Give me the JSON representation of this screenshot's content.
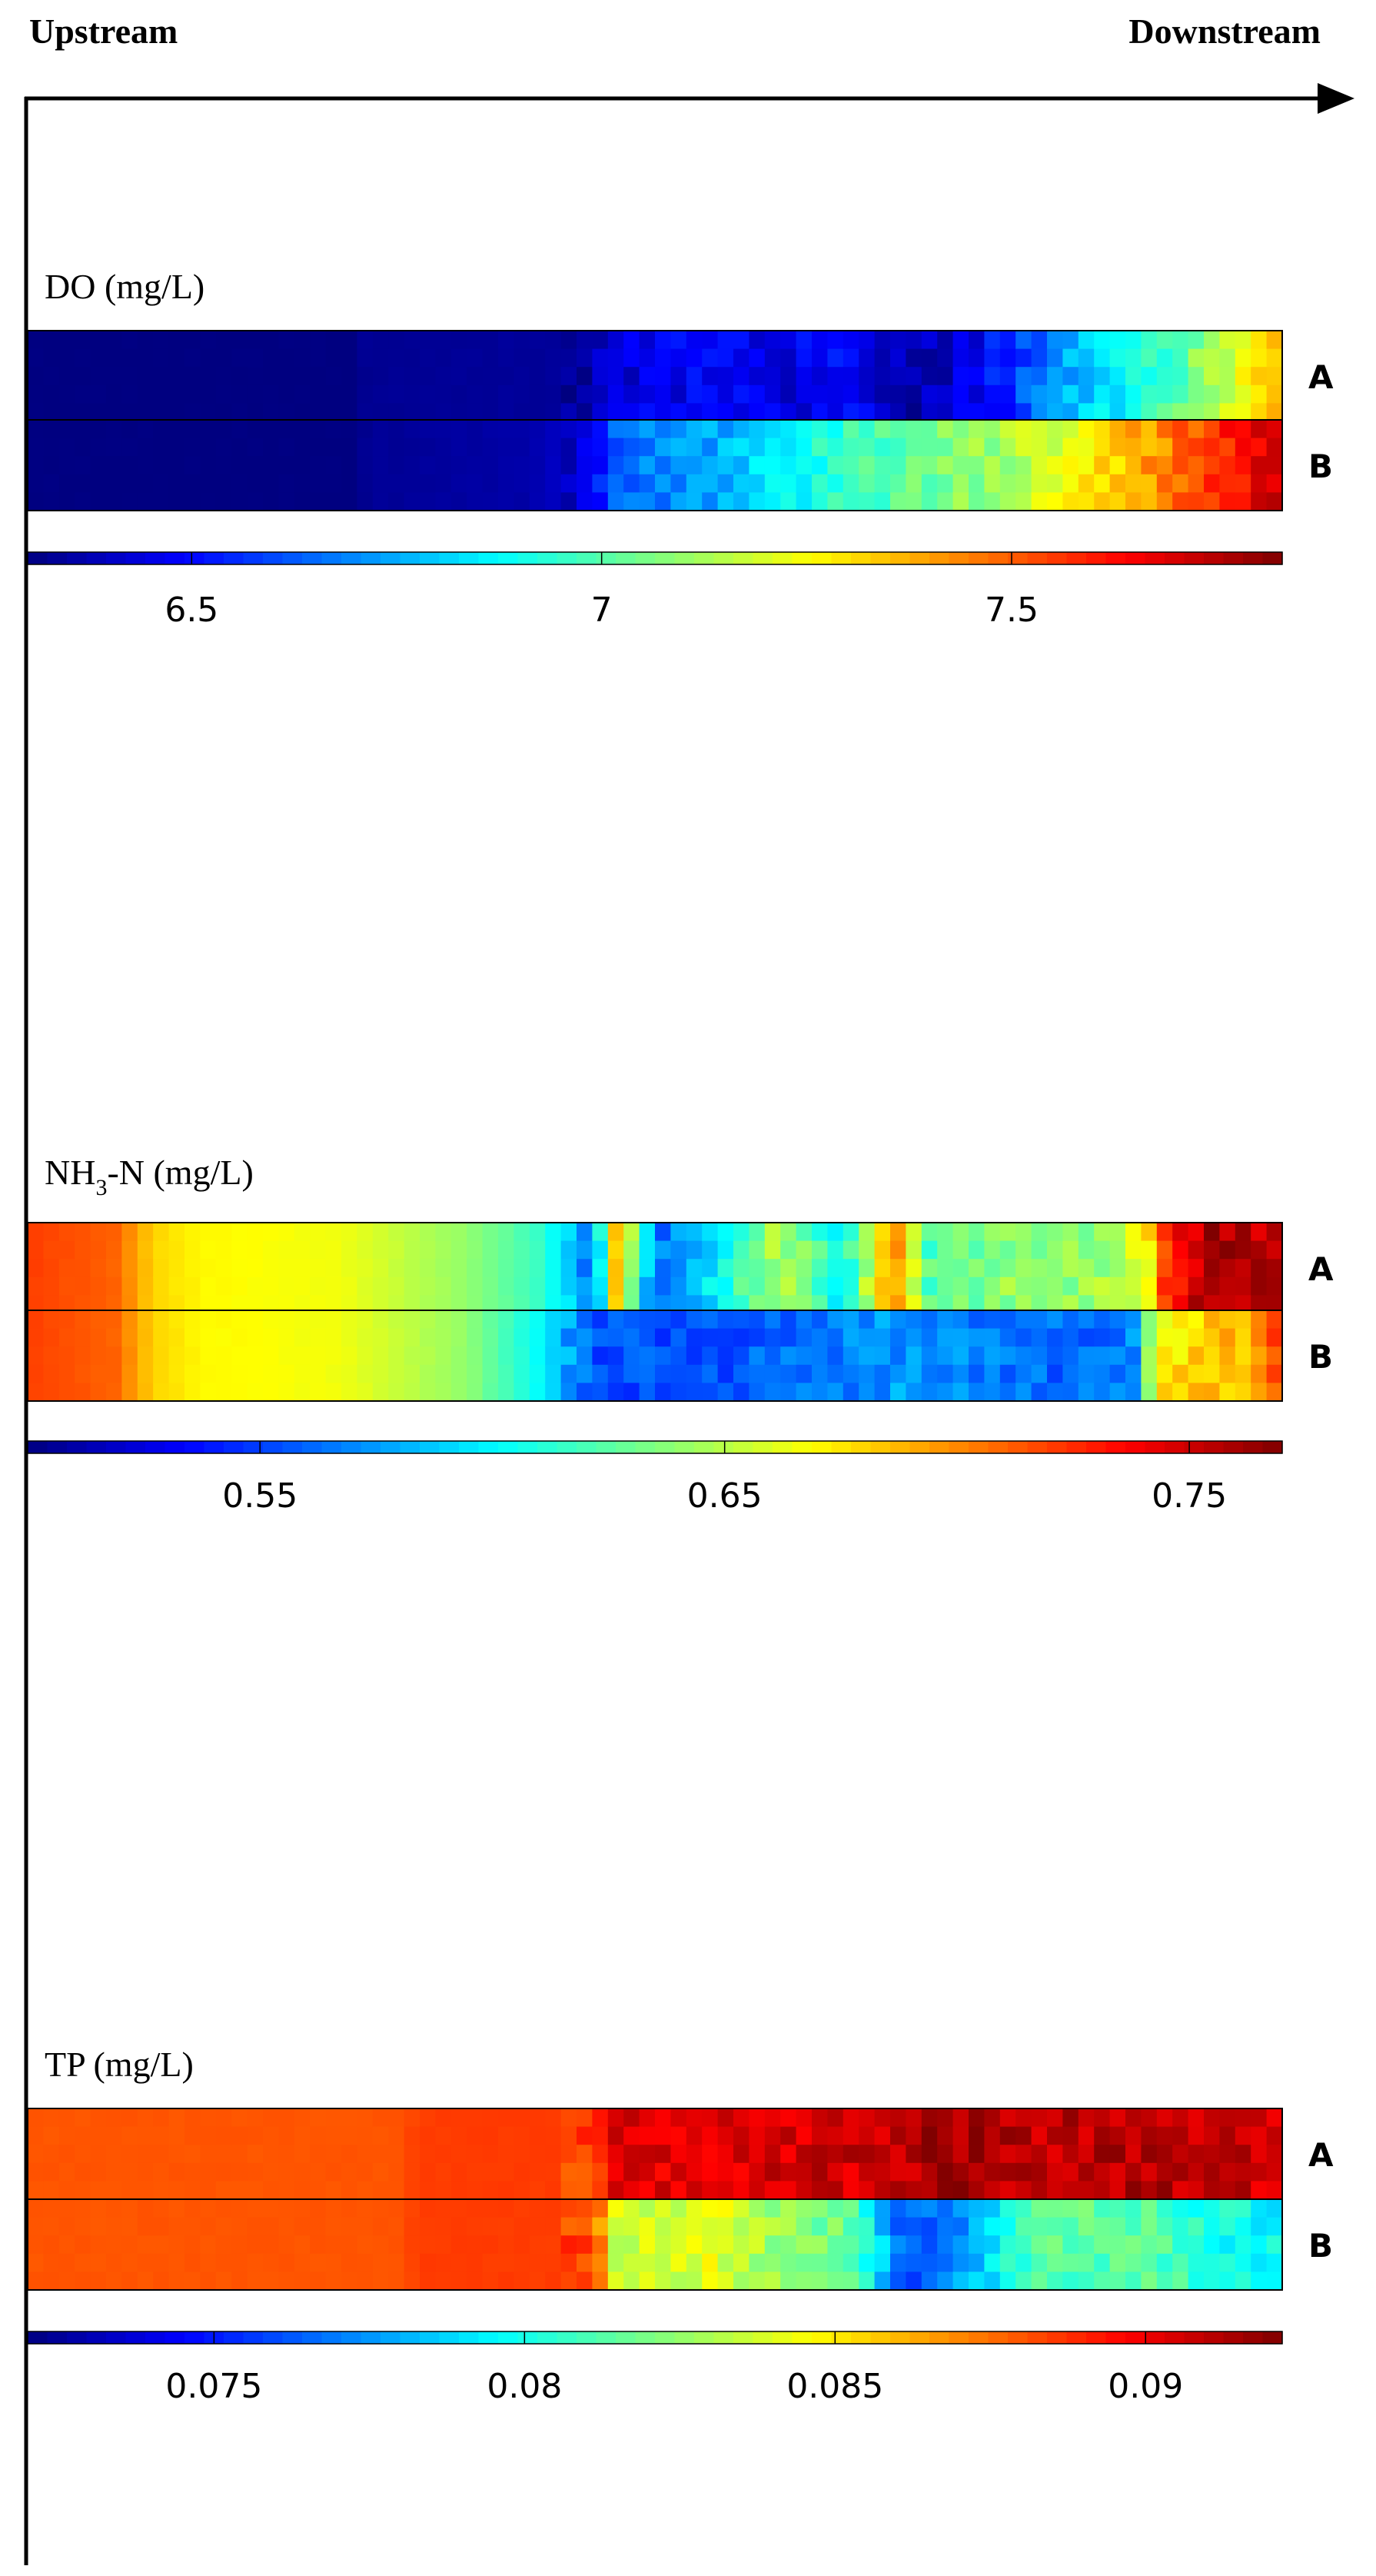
{
  "direction": {
    "start_label": "Upstream",
    "end_label": "Downstream"
  },
  "colormap": "jet",
  "colors": {
    "axis": "#000000",
    "band_border": "#000000",
    "background": "#ffffff"
  },
  "chart_data": [
    {
      "type": "heatmap",
      "title_main": "DO (mg/L)",
      "title_sub": "",
      "title_tail": "",
      "rows": [
        "A",
        "B"
      ],
      "subrows_per_band": 5,
      "clim": [
        6.3,
        7.83
      ],
      "colorbar_ticks": [
        {
          "value": 6.5,
          "label": "6.5"
        },
        {
          "value": 7.0,
          "label": "7"
        },
        {
          "value": 7.5,
          "label": "7.5"
        }
      ],
      "profiles": {
        "A": [
          [
            0,
            6.3
          ],
          [
            0.26,
            6.3
          ],
          [
            0.27,
            6.33
          ],
          [
            0.44,
            6.34
          ],
          [
            0.46,
            6.4
          ],
          [
            0.5,
            6.46
          ],
          [
            0.55,
            6.48
          ],
          [
            0.6,
            6.44
          ],
          [
            0.65,
            6.5
          ],
          [
            0.7,
            6.35
          ],
          [
            0.74,
            6.42
          ],
          [
            0.78,
            6.55
          ],
          [
            0.83,
            6.75
          ],
          [
            0.88,
            6.9
          ],
          [
            0.92,
            7.02
          ],
          [
            0.95,
            7.15
          ],
          [
            0.98,
            7.3
          ],
          [
            1.0,
            7.4
          ]
        ],
        "B": [
          [
            0,
            6.3
          ],
          [
            0.26,
            6.3
          ],
          [
            0.27,
            6.33
          ],
          [
            0.4,
            6.36
          ],
          [
            0.45,
            6.45
          ],
          [
            0.47,
            6.65
          ],
          [
            0.55,
            6.75
          ],
          [
            0.62,
            6.9
          ],
          [
            0.7,
            7.02
          ],
          [
            0.78,
            7.12
          ],
          [
            0.85,
            7.28
          ],
          [
            0.9,
            7.42
          ],
          [
            0.95,
            7.58
          ],
          [
            1.0,
            7.72
          ]
        ]
      }
    },
    {
      "type": "heatmap",
      "title_main": "NH",
      "title_sub": "3",
      "title_tail": "-N (mg/L)",
      "rows": [
        "A",
        "B"
      ],
      "subrows_per_band": 5,
      "clim": [
        0.5,
        0.77
      ],
      "colorbar_ticks": [
        {
          "value": 0.55,
          "label": "0.55"
        },
        {
          "value": 0.65,
          "label": "0.65"
        },
        {
          "value": 0.75,
          "label": "0.75"
        }
      ],
      "profiles": {
        "A": [
          [
            0,
            0.72
          ],
          [
            0.07,
            0.71
          ],
          [
            0.1,
            0.68
          ],
          [
            0.14,
            0.67
          ],
          [
            0.25,
            0.665
          ],
          [
            0.35,
            0.64
          ],
          [
            0.41,
            0.615
          ],
          [
            0.45,
            0.56
          ],
          [
            0.47,
            0.69
          ],
          [
            0.5,
            0.56
          ],
          [
            0.55,
            0.6
          ],
          [
            0.6,
            0.65
          ],
          [
            0.65,
            0.6
          ],
          [
            0.69,
            0.7
          ],
          [
            0.72,
            0.62
          ],
          [
            0.78,
            0.64
          ],
          [
            0.85,
            0.64
          ],
          [
            0.89,
            0.66
          ],
          [
            0.91,
            0.73
          ],
          [
            0.94,
            0.76
          ],
          [
            1.0,
            0.75
          ]
        ],
        "B": [
          [
            0,
            0.72
          ],
          [
            0.07,
            0.71
          ],
          [
            0.1,
            0.68
          ],
          [
            0.14,
            0.67
          ],
          [
            0.25,
            0.665
          ],
          [
            0.35,
            0.64
          ],
          [
            0.41,
            0.6
          ],
          [
            0.45,
            0.555
          ],
          [
            0.55,
            0.555
          ],
          [
            0.62,
            0.565
          ],
          [
            0.7,
            0.575
          ],
          [
            0.8,
            0.56
          ],
          [
            0.88,
            0.565
          ],
          [
            0.9,
            0.67
          ],
          [
            0.93,
            0.68
          ],
          [
            0.97,
            0.69
          ],
          [
            1.0,
            0.72
          ]
        ]
      }
    },
    {
      "type": "heatmap",
      "title_main": "TP (mg/L)",
      "title_sub": "",
      "title_tail": "",
      "rows": [
        "A",
        "B"
      ],
      "subrows_per_band": 5,
      "clim": [
        0.072,
        0.0922
      ],
      "colorbar_ticks": [
        {
          "value": 0.075,
          "label": "0.075"
        },
        {
          "value": 0.08,
          "label": "0.08"
        },
        {
          "value": 0.085,
          "label": "0.085"
        },
        {
          "value": 0.09,
          "label": "0.09"
        }
      ],
      "profiles": {
        "A": [
          [
            0,
            0.088
          ],
          [
            0.3,
            0.088
          ],
          [
            0.31,
            0.0885
          ],
          [
            0.45,
            0.0885
          ],
          [
            0.47,
            0.0902
          ],
          [
            0.6,
            0.0905
          ],
          [
            0.7,
            0.0908
          ],
          [
            0.72,
            0.0918
          ],
          [
            0.8,
            0.091
          ],
          [
            0.9,
            0.0912
          ],
          [
            1.0,
            0.0905
          ]
        ],
        "B": [
          [
            0,
            0.088
          ],
          [
            0.3,
            0.088
          ],
          [
            0.31,
            0.0885
          ],
          [
            0.45,
            0.0885
          ],
          [
            0.47,
            0.0835
          ],
          [
            0.55,
            0.084
          ],
          [
            0.6,
            0.0825
          ],
          [
            0.66,
            0.0815
          ],
          [
            0.7,
            0.076
          ],
          [
            0.75,
            0.0778
          ],
          [
            0.8,
            0.0812
          ],
          [
            0.88,
            0.0815
          ],
          [
            0.95,
            0.08
          ],
          [
            1.0,
            0.0795
          ]
        ]
      }
    }
  ]
}
